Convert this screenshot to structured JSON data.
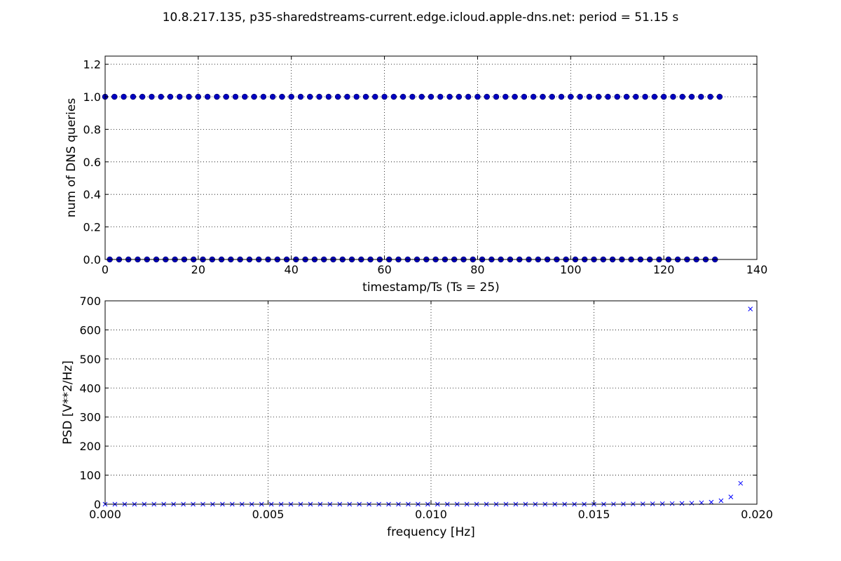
{
  "figure_title": "10.8.217.135, p35-sharedstreams-current.edge.icloud.apple-dns.net: period = 51.15 s",
  "colors": {
    "marker": "#0000bf",
    "cross": "#0000ff",
    "grid": "#000000",
    "axes": "#000000"
  },
  "chart_data": [
    {
      "type": "scatter",
      "title": "",
      "xlabel": "timestamp/Ts (Ts = 25)",
      "ylabel": "num of DNS queries",
      "xlim": [
        0,
        140
      ],
      "ylim": [
        0.0,
        1.25
      ],
      "xticks": [
        0,
        20,
        40,
        60,
        80,
        100,
        120,
        140
      ],
      "xtick_labels": [
        "0",
        "20",
        "40",
        "60",
        "80",
        "100",
        "120",
        "140"
      ],
      "yticks": [
        0.0,
        0.2,
        0.4,
        0.6,
        0.8,
        1.0,
        1.2
      ],
      "ytick_labels": [
        "0.0",
        "0.2",
        "0.4",
        "0.6",
        "0.8",
        "1.0",
        "1.2"
      ],
      "grid": true,
      "marker": "circle",
      "series": [
        {
          "points_description": "query count per time bin (alternating 1,0)",
          "x": [
            0,
            1,
            2,
            3,
            4,
            5,
            6,
            7,
            8,
            9,
            10,
            11,
            12,
            13,
            14,
            15,
            16,
            17,
            18,
            19,
            20,
            21,
            22,
            23,
            24,
            25,
            26,
            27,
            28,
            29,
            30,
            31,
            32,
            33,
            34,
            35,
            36,
            37,
            38,
            39,
            40,
            41,
            42,
            43,
            44,
            45,
            46,
            47,
            48,
            49,
            50,
            51,
            52,
            53,
            54,
            55,
            56,
            57,
            58,
            59,
            60,
            61,
            62,
            63,
            64,
            65,
            66,
            67,
            68,
            69,
            70,
            71,
            72,
            73,
            74,
            75,
            76,
            77,
            78,
            79,
            80,
            81,
            82,
            83,
            84,
            85,
            86,
            87,
            88,
            89,
            90,
            91,
            92,
            93,
            94,
            95,
            96,
            97,
            98,
            99,
            100,
            101,
            102,
            103,
            104,
            105,
            106,
            107,
            108,
            109,
            110,
            111,
            112,
            113,
            114,
            115,
            116,
            117,
            118,
            119,
            120,
            121,
            122,
            123,
            124,
            125,
            126,
            127,
            128,
            129,
            130,
            131,
            132
          ],
          "y": [
            1,
            0,
            1,
            0,
            1,
            0,
            1,
            0,
            1,
            0,
            1,
            0,
            1,
            0,
            1,
            0,
            1,
            0,
            1,
            0,
            1,
            0,
            1,
            0,
            1,
            0,
            1,
            0,
            1,
            0,
            1,
            0,
            1,
            0,
            1,
            0,
            1,
            0,
            1,
            0,
            1,
            0,
            1,
            0,
            1,
            0,
            1,
            0,
            1,
            0,
            1,
            0,
            1,
            0,
            1,
            0,
            1,
            0,
            1,
            0,
            1,
            0,
            1,
            0,
            1,
            0,
            1,
            0,
            1,
            0,
            1,
            0,
            1,
            0,
            1,
            0,
            1,
            0,
            1,
            0,
            1,
            0,
            1,
            0,
            1,
            0,
            1,
            0,
            1,
            0,
            1,
            0,
            1,
            0,
            1,
            0,
            1,
            0,
            1,
            0,
            1,
            0,
            1,
            0,
            1,
            0,
            1,
            0,
            1,
            0,
            1,
            0,
            1,
            0,
            1,
            0,
            1,
            0,
            1,
            0,
            1,
            0,
            1,
            0,
            1,
            0,
            1,
            0,
            1,
            0,
            1,
            0,
            1
          ]
        }
      ]
    },
    {
      "type": "scatter",
      "title": "",
      "xlabel": "frequency [Hz]",
      "ylabel": "PSD [V**2/Hz]",
      "xlim": [
        0.0,
        0.02
      ],
      "ylim": [
        0,
        700
      ],
      "xticks": [
        0.0,
        0.005,
        0.01,
        0.015,
        0.02
      ],
      "xtick_labels": [
        "0.000",
        "0.005",
        "0.010",
        "0.015",
        "0.020"
      ],
      "yticks": [
        0,
        100,
        200,
        300,
        400,
        500,
        600,
        700
      ],
      "ytick_labels": [
        "0",
        "100",
        "200",
        "300",
        "400",
        "500",
        "600",
        "700"
      ],
      "grid": true,
      "marker": "x",
      "series": [
        {
          "x": [
            0.0,
            0.0003,
            0.0006,
            0.0009,
            0.0012,
            0.0015,
            0.0018,
            0.0021,
            0.0024,
            0.0027,
            0.003,
            0.0033,
            0.0036,
            0.0039,
            0.0042,
            0.0045,
            0.0048,
            0.0051,
            0.0054,
            0.0057,
            0.006,
            0.0063,
            0.0066,
            0.0069,
            0.0072,
            0.0075,
            0.0078,
            0.0081,
            0.0084,
            0.0087,
            0.009,
            0.0093,
            0.0096,
            0.0099,
            0.0102,
            0.0105,
            0.0108,
            0.0111,
            0.0114,
            0.0117,
            0.012,
            0.0123,
            0.0126,
            0.0129,
            0.0132,
            0.0135,
            0.0138,
            0.0141,
            0.0144,
            0.0147,
            0.015,
            0.0153,
            0.0156,
            0.0159,
            0.0162,
            0.0165,
            0.0168,
            0.0171,
            0.0174,
            0.0177,
            0.018,
            0.0183,
            0.0186,
            0.0189,
            0.0192,
            0.0195,
            0.0198
          ],
          "y": [
            0,
            0,
            0,
            0,
            0,
            0,
            0,
            0,
            0,
            0,
            0,
            0,
            0,
            0,
            0,
            0,
            0,
            0,
            0,
            0,
            0,
            0,
            0,
            0,
            0,
            0,
            0,
            0,
            0,
            0,
            0,
            0,
            0,
            0,
            0,
            0,
            0,
            0,
            0,
            0,
            0,
            0,
            0,
            0,
            0,
            0,
            0,
            0,
            0,
            0,
            0,
            0,
            0.5,
            0.6,
            0.8,
            1,
            1.3,
            1.6,
            2,
            2.7,
            3.5,
            5,
            7,
            12,
            25,
            72,
            672
          ]
        }
      ]
    }
  ]
}
